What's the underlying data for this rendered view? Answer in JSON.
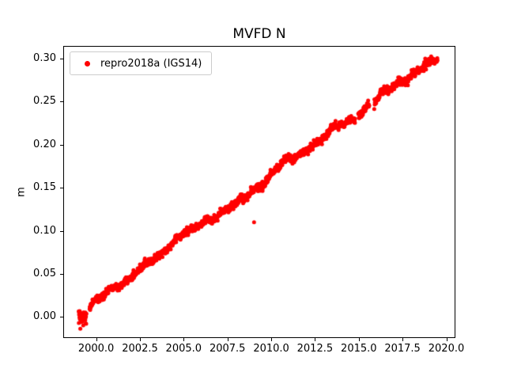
{
  "figure": {
    "background": "#ffffff"
  },
  "chart_data": {
    "type": "scatter",
    "title": "MVFD N",
    "xlabel": "",
    "ylabel": "m",
    "grid": false,
    "xlim": [
      1998.12,
      2020.52
    ],
    "ylim": [
      -0.0244,
      0.3145
    ],
    "x_axis": {
      "tick_values": [
        2000.0,
        2002.5,
        2005.0,
        2007.5,
        2010.0,
        2012.5,
        2015.0,
        2017.5,
        2020.0
      ],
      "tick_labels": [
        "2000.0",
        "2002.5",
        "2005.0",
        "2007.5",
        "2010.0",
        "2012.5",
        "2015.0",
        "2017.5",
        "2020.0"
      ]
    },
    "y_axis": {
      "label": "m",
      "tick_values": [
        0.0,
        0.05,
        0.1,
        0.15,
        0.2,
        0.25,
        0.3
      ],
      "tick_labels": [
        "0.00",
        "0.05",
        "0.10",
        "0.15",
        "0.20",
        "0.25",
        "0.30"
      ]
    },
    "legend": {
      "location": "upper left",
      "entries": [
        {
          "label": "repro2018a (IGS14)",
          "color": "#ff0000",
          "marker": "dot"
        }
      ]
    },
    "series": [
      {
        "name": "repro2018a (IGS14)",
        "color": "#ff0000",
        "marker": "circle",
        "marker_radius_px": 2.5,
        "sample_step_years": 0.012,
        "noise_sigma_m": 0.0021,
        "start_blob_until": 1999.5,
        "start_blob_sigma_scale": 2.0,
        "trend_points": [
          [
            1999.0,
            -0.003
          ],
          [
            1999.45,
            0.0005
          ],
          [
            1999.62,
            0.011
          ],
          [
            2000.0,
            0.018
          ],
          [
            2000.85,
            0.033
          ],
          [
            2001.73,
            0.042
          ],
          [
            2002.6,
            0.055
          ],
          [
            2003.5,
            0.07
          ],
          [
            2004.9,
            0.095
          ],
          [
            2006.25,
            0.11
          ],
          [
            2007.6,
            0.126
          ],
          [
            2008.5,
            0.139
          ],
          [
            2009.2,
            0.152
          ],
          [
            2009.6,
            0.157
          ],
          [
            2010.0,
            0.167
          ],
          [
            2010.75,
            0.18
          ],
          [
            2011.5,
            0.188
          ],
          [
            2012.5,
            0.201
          ],
          [
            2013.46,
            0.216
          ],
          [
            2014.5,
            0.227
          ],
          [
            2014.8,
            0.2315
          ],
          [
            2014.97,
            0.237
          ],
          [
            2015.6,
            0.2465
          ],
          [
            2015.88,
            0.2495
          ],
          [
            2016.19,
            0.257
          ],
          [
            2017.09,
            0.271
          ],
          [
            2018.0,
            0.281
          ],
          [
            2019.0,
            0.293
          ],
          [
            2019.5,
            0.2985
          ]
        ],
        "gaps": [
          [
            1999.45,
            1999.62
          ],
          [
            2014.8,
            2014.97
          ],
          [
            2015.6,
            2015.88
          ]
        ],
        "outliers": [
          [
            2009.02,
            0.11
          ]
        ]
      }
    ]
  }
}
